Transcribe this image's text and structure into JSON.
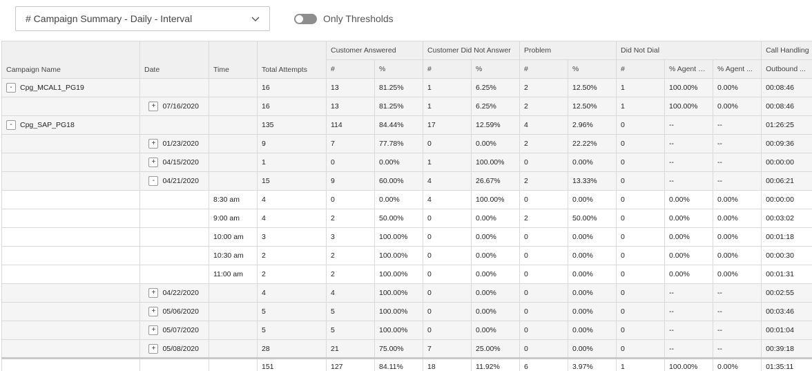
{
  "toolbar": {
    "report_select": "# Campaign Summary - Daily - Interval",
    "toggle_label": "Only Thresholds"
  },
  "table": {
    "group_headers": [
      "Customer Answered",
      "Customer Did Not Answer",
      "Problem",
      "Did Not Dial",
      "Call Handling"
    ],
    "columns": [
      "Campaign Name",
      "Date",
      "Time",
      "Total Attempts",
      "#",
      "%",
      "#",
      "%",
      "#",
      "%",
      "#",
      "% Agent R...",
      "% Agent ...",
      "Outbound ..."
    ],
    "rows": [
      {
        "style": "grey",
        "expand_col": 0,
        "expander": "-",
        "cells": [
          "Cpg_MCAL1_PG19",
          "",
          "",
          "16",
          "13",
          "81.25%",
          "1",
          "6.25%",
          "2",
          "12.50%",
          "1",
          "100.00%",
          "0.00%",
          "00:08:46"
        ]
      },
      {
        "style": "grey",
        "expand_col": 1,
        "expander": "+",
        "cells": [
          "",
          "07/16/2020",
          "",
          "16",
          "13",
          "81.25%",
          "1",
          "6.25%",
          "2",
          "12.50%",
          "1",
          "100.00%",
          "0.00%",
          "00:08:46"
        ]
      },
      {
        "style": "grey",
        "expand_col": 0,
        "expander": "-",
        "cells": [
          "Cpg_SAP_PG18",
          "",
          "",
          "135",
          "114",
          "84.44%",
          "17",
          "12.59%",
          "4",
          "2.96%",
          "0",
          "--",
          "--",
          "01:26:25"
        ]
      },
      {
        "style": "grey",
        "expand_col": 1,
        "expander": "+",
        "cells": [
          "",
          "01/23/2020",
          "",
          "9",
          "7",
          "77.78%",
          "0",
          "0.00%",
          "2",
          "22.22%",
          "0",
          "--",
          "--",
          "00:09:36"
        ]
      },
      {
        "style": "grey",
        "expand_col": 1,
        "expander": "+",
        "cells": [
          "",
          "04/15/2020",
          "",
          "1",
          "0",
          "0.00%",
          "1",
          "100.00%",
          "0",
          "0.00%",
          "0",
          "--",
          "--",
          "00:00:00"
        ]
      },
      {
        "style": "grey",
        "expand_col": 1,
        "expander": "-",
        "cells": [
          "",
          "04/21/2020",
          "",
          "15",
          "9",
          "60.00%",
          "4",
          "26.67%",
          "2",
          "13.33%",
          "0",
          "--",
          "--",
          "00:06:21"
        ]
      },
      {
        "style": "white",
        "expand_col": -1,
        "expander": "",
        "cells": [
          "",
          "",
          "8:30 am",
          "4",
          "0",
          "0.00%",
          "4",
          "100.00%",
          "0",
          "0.00%",
          "0",
          "0.00%",
          "0.00%",
          "00:00:00"
        ]
      },
      {
        "style": "white",
        "expand_col": -1,
        "expander": "",
        "cells": [
          "",
          "",
          "9:00 am",
          "4",
          "2",
          "50.00%",
          "0",
          "0.00%",
          "2",
          "50.00%",
          "0",
          "0.00%",
          "0.00%",
          "00:03:02"
        ]
      },
      {
        "style": "white",
        "expand_col": -1,
        "expander": "",
        "cells": [
          "",
          "",
          "10:00 am",
          "3",
          "3",
          "100.00%",
          "0",
          "0.00%",
          "0",
          "0.00%",
          "0",
          "0.00%",
          "0.00%",
          "00:01:18"
        ]
      },
      {
        "style": "white",
        "expand_col": -1,
        "expander": "",
        "cells": [
          "",
          "",
          "10:30 am",
          "2",
          "2",
          "100.00%",
          "0",
          "0.00%",
          "0",
          "0.00%",
          "0",
          "0.00%",
          "0.00%",
          "00:00:30"
        ]
      },
      {
        "style": "white",
        "expand_col": -1,
        "expander": "",
        "cells": [
          "",
          "",
          "11:00 am",
          "2",
          "2",
          "100.00%",
          "0",
          "0.00%",
          "0",
          "0.00%",
          "0",
          "0.00%",
          "0.00%",
          "00:01:31"
        ]
      },
      {
        "style": "grey",
        "expand_col": 1,
        "expander": "+",
        "cells": [
          "",
          "04/22/2020",
          "",
          "4",
          "4",
          "100.00%",
          "0",
          "0.00%",
          "0",
          "0.00%",
          "0",
          "--",
          "--",
          "00:02:55"
        ]
      },
      {
        "style": "grey",
        "expand_col": 1,
        "expander": "+",
        "cells": [
          "",
          "05/06/2020",
          "",
          "5",
          "5",
          "100.00%",
          "0",
          "0.00%",
          "0",
          "0.00%",
          "0",
          "--",
          "--",
          "00:03:46"
        ]
      },
      {
        "style": "grey",
        "expand_col": 1,
        "expander": "+",
        "cells": [
          "",
          "05/07/2020",
          "",
          "5",
          "5",
          "100.00%",
          "0",
          "0.00%",
          "0",
          "0.00%",
          "0",
          "--",
          "--",
          "00:01:04"
        ]
      },
      {
        "style": "grey",
        "expand_col": 1,
        "expander": "+",
        "cells": [
          "",
          "05/08/2020",
          "",
          "28",
          "21",
          "75.00%",
          "7",
          "25.00%",
          "0",
          "0.00%",
          "0",
          "--",
          "--",
          "00:39:18"
        ]
      }
    ],
    "totals": [
      "",
      "",
      "",
      "151",
      "127",
      "84.11%",
      "18",
      "11.92%",
      "6",
      "3.97%",
      "1",
      "100.00%",
      "0.00%",
      "01:35:11"
    ]
  },
  "icons": {
    "dropdown": "chevron-down-icon",
    "toggle": "toggle-switch"
  },
  "colors": {
    "header_bg": "#f0f0f0",
    "row_grey": "#f5f5f5",
    "border": "#d9d9d9",
    "toggle_off": "#8e8e8e"
  }
}
